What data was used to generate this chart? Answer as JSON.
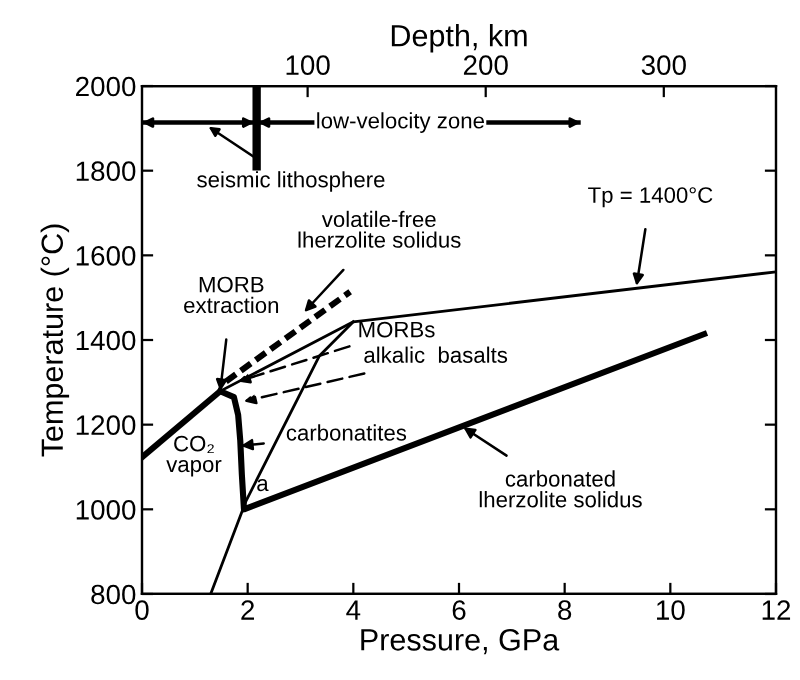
{
  "chart_data": {
    "type": "line",
    "xlabel": "Pressure, GPa",
    "ylabel": "Temperature (°C)",
    "x2label": "Depth, km",
    "xlim": [
      0,
      12
    ],
    "xticks": [
      0,
      2,
      4,
      6,
      8,
      10,
      12
    ],
    "ylim": [
      800,
      2000
    ],
    "yticks": [
      800,
      1000,
      1200,
      1400,
      1600,
      1800,
      2000
    ],
    "x2lim": [
      7,
      363
    ],
    "x2ticks": [
      100,
      200,
      300
    ],
    "grid": false,
    "marker": "none",
    "series": [
      {
        "color": "#000000",
        "x": [
          0,
          1.48
        ],
        "values": [
          1123,
          1279
        ]
      },
      {
        "color": "#000000",
        "x": [
          1.48,
          4.0,
          12
        ],
        "values": [
          1279,
          1443,
          1561
        ]
      },
      {
        "color": "#000000",
        "x": [
          1.48,
          1.74,
          1.82,
          1.86,
          1.89,
          1.93,
          10.64
        ],
        "values": [
          1279,
          1265,
          1223,
          1162,
          1082,
          1000,
          1414
        ]
      },
      {
        "color": "#000000",
        "x": [
          1.3,
          1.97,
          3.36,
          4.0
        ],
        "values": [
          800,
          1020,
          1363,
          1443
        ]
      },
      {
        "color": "#000000",
        "x": [
          1.59,
          3.94
        ],
        "values": [
          1302,
          1514
        ],
        "line_style": "dashed"
      },
      {
        "color": "#000000",
        "x": [
          2.17,
          2.17
        ],
        "values": [
          2000,
          1810
        ]
      }
    ],
    "annotations": [
      {
        "text": "Tp = 1400°C",
        "x": 9.36,
        "y": 1528
      },
      {
        "text": "MORB\nextraction",
        "x": 1.48,
        "y": 1279
      },
      {
        "text": "volatile-free\nlherzolite solidus",
        "x": 3.07,
        "y": 1466
      },
      {
        "text": "carbonatites",
        "x": 1.87,
        "y": 1150
      },
      {
        "text": "carbonated\nlherzolite solidus",
        "x": 6.08,
        "y": 1194
      },
      "seismic lithosphere",
      {
        "text": "MORBs",
        "x": 1.82,
        "y": 1302
      },
      {
        "text": "alkalic  basalts",
        "x": 1.93,
        "y": 1255
      },
      "CO₂\nvapor",
      {
        "text": "a",
        "x": 2.28,
        "y": 1057
      },
      "low-velocity zone"
    ]
  }
}
